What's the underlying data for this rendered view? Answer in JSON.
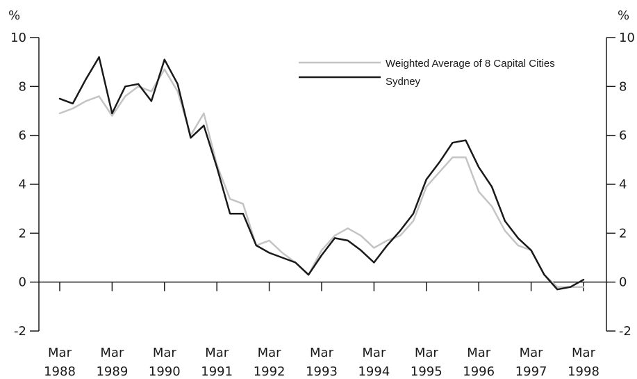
{
  "chart_data": {
    "type": "line",
    "title": "",
    "xlabel": "",
    "ylabel": "",
    "y_unit_left": "%",
    "y_unit_right": "%",
    "ylim": [
      -2,
      10
    ],
    "yticks": [
      "10",
      "8",
      "6",
      "4",
      "2",
      "0",
      "-2"
    ],
    "ytick_values": [
      10,
      8,
      6,
      4,
      2,
      0,
      -2
    ],
    "xlim": [
      1988.0,
      1998.0
    ],
    "xticks": [
      {
        "month": "Mar",
        "year": "1988",
        "value": 1988.0
      },
      {
        "month": "Mar",
        "year": "1989",
        "value": 1989.0
      },
      {
        "month": "Mar",
        "year": "1990",
        "value": 1990.0
      },
      {
        "month": "Mar",
        "year": "1991",
        "value": 1991.0
      },
      {
        "month": "Mar",
        "year": "1992",
        "value": 1992.0
      },
      {
        "month": "Mar",
        "year": "1993",
        "value": 1993.0
      },
      {
        "month": "Mar",
        "year": "1994",
        "value": 1994.0
      },
      {
        "month": "Mar",
        "year": "1995",
        "value": 1995.0
      },
      {
        "month": "Mar",
        "year": "1996",
        "value": 1996.0
      },
      {
        "month": "Mar",
        "year": "1997",
        "value": 1997.0
      },
      {
        "month": "Mar",
        "year": "1998",
        "value": 1998.0
      }
    ],
    "grid": false,
    "legend_position": "top-right",
    "x": [
      1988.0,
      1988.25,
      1988.5,
      1988.75,
      1989.0,
      1989.25,
      1989.5,
      1989.75,
      1990.0,
      1990.25,
      1990.5,
      1990.75,
      1991.0,
      1991.25,
      1991.5,
      1991.75,
      1992.0,
      1992.25,
      1992.5,
      1992.75,
      1993.0,
      1993.25,
      1993.5,
      1993.75,
      1994.0,
      1994.25,
      1994.5,
      1994.75,
      1995.0,
      1995.25,
      1995.5,
      1995.75,
      1996.0,
      1996.25,
      1996.5,
      1996.75,
      1997.0,
      1997.25,
      1997.5,
      1997.75,
      1998.0
    ],
    "series": [
      {
        "name": "Weighted Average of 8 Capital Cities",
        "color": "#c4c4c4",
        "values": [
          6.9,
          7.1,
          7.4,
          7.6,
          6.8,
          7.6,
          8.0,
          7.8,
          8.7,
          7.8,
          6.0,
          6.9,
          4.8,
          3.4,
          3.2,
          1.5,
          1.7,
          1.2,
          0.8,
          0.3,
          1.3,
          1.9,
          2.2,
          1.9,
          1.4,
          1.7,
          1.9,
          2.5,
          3.9,
          4.5,
          5.1,
          5.1,
          3.7,
          3.1,
          2.1,
          1.5,
          1.3,
          0.3,
          -0.2,
          -0.2,
          -0.2
        ]
      },
      {
        "name": "Sydney",
        "color": "#1a1a1a",
        "values": [
          7.5,
          7.3,
          8.3,
          9.2,
          6.9,
          8.0,
          8.1,
          7.4,
          9.1,
          8.1,
          5.9,
          6.4,
          4.7,
          2.8,
          2.8,
          1.5,
          1.2,
          1.0,
          0.8,
          0.3,
          1.1,
          1.8,
          1.7,
          1.3,
          0.8,
          1.5,
          2.1,
          2.8,
          4.2,
          4.9,
          5.7,
          5.8,
          4.7,
          3.9,
          2.5,
          1.8,
          1.3,
          0.3,
          -0.3,
          -0.2,
          0.1
        ]
      }
    ]
  }
}
